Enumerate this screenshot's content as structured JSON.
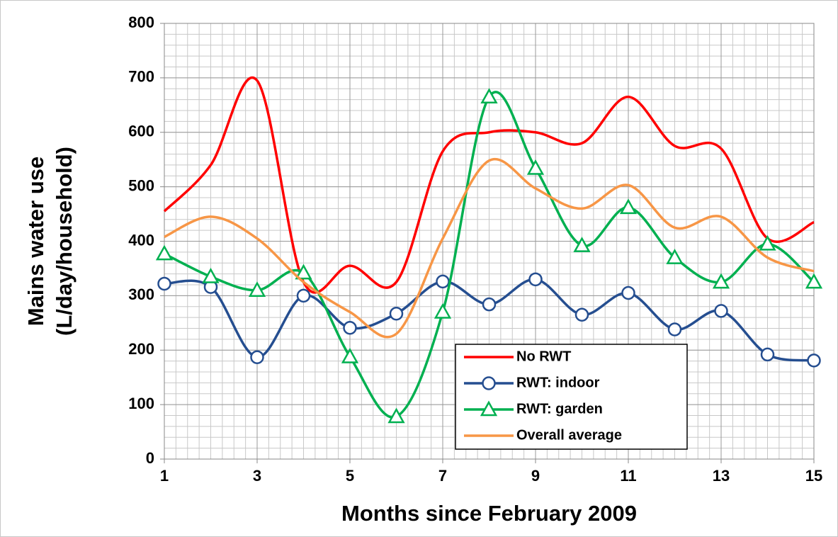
{
  "chart_data": {
    "type": "line",
    "xlabel": "Months since February 2009",
    "ylabel": [
      "Mains water use",
      "(L/day/household)"
    ],
    "x": [
      1,
      2,
      3,
      4,
      5,
      6,
      7,
      8,
      9,
      10,
      11,
      12,
      13,
      14,
      15
    ],
    "series": [
      {
        "name": "No RWT",
        "color": "#ff0000",
        "marker": "none",
        "values": [
          455,
          540,
          695,
          325,
          355,
          325,
          565,
          600,
          600,
          580,
          665,
          575,
          570,
          405,
          435
        ]
      },
      {
        "name": "RWT: indoor",
        "color": "#254e90",
        "marker": "circle",
        "values": [
          322,
          316,
          187,
          300,
          241,
          267,
          326,
          284,
          330,
          265,
          305,
          238,
          272,
          192,
          181
        ]
      },
      {
        "name": "RWT: garden",
        "color": "#00b050",
        "marker": "triangle",
        "values": [
          377,
          335,
          310,
          342,
          188,
          78,
          270,
          665,
          534,
          392,
          462,
          370,
          325,
          395,
          325
        ]
      },
      {
        "name": "Overall average",
        "color": "#f79646",
        "marker": "none",
        "values": [
          408,
          445,
          405,
          325,
          270,
          230,
          405,
          548,
          497,
          460,
          503,
          425,
          445,
          370,
          345
        ]
      }
    ],
    "xlim": [
      1,
      15
    ],
    "ylim": [
      0,
      800
    ],
    "xticks": [
      1,
      3,
      5,
      7,
      9,
      11,
      13,
      15
    ],
    "yticks": [
      0,
      100,
      200,
      300,
      400,
      500,
      600,
      700,
      800
    ],
    "grid": true,
    "minor_grid": {
      "x": 0.25,
      "y": 20
    },
    "smooth": true,
    "legend": "lower right"
  }
}
